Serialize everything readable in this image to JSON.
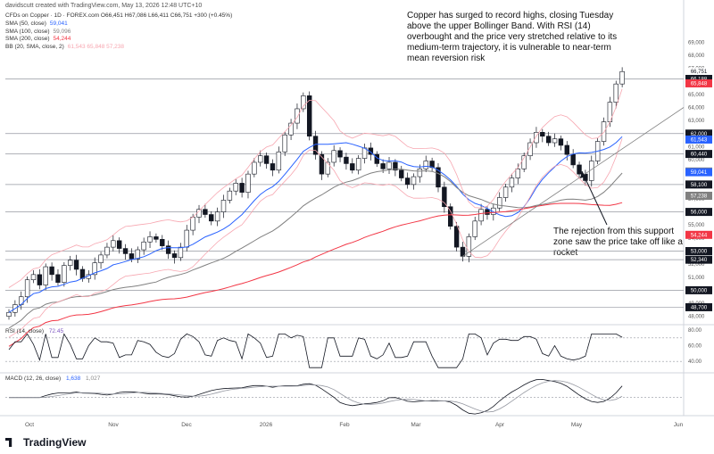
{
  "attribution": "davidscutt created with TradingView.com, May 13, 2026 12:48 UTC+10",
  "symbol_line": "CFDs on Copper · 1D · FOREX.com  O66,451 H67,086 L66,411 C66,751 +300 (+0.45%)",
  "indicators": [
    {
      "label": "SMA (50, close)",
      "value": "59,041",
      "color": "#2962ff"
    },
    {
      "label": "SMA (100, close)",
      "value": "59,096",
      "color": "#808080"
    },
    {
      "label": "SMA (200, close)",
      "value": "54,244",
      "color": "#f23645"
    },
    {
      "label": "BB (20, SMA, close, 2)",
      "value": "61,543  65,848  57,238",
      "color": "#f7a6b0"
    }
  ],
  "annotation_top": "Copper has surged to record highs, closing Tuesday above the upper Bollinger Band. With RSI (14) overbought and the price very stretched relative to its medium-term trajectory, it is vulnerable to near-term mean reversion risk",
  "annotation_bottom": "The rejection from this support zone saw the price take off like a rocket",
  "rsi_label": "RSI (14, close)",
  "rsi_value": "72.45",
  "macd_label": "MACD (12, 26, close)",
  "macd_value": "1,638",
  "macd_value2": "1,027",
  "logo_text": "TradingView",
  "chart_data": {
    "type": "candlestick",
    "x_ticks": [
      "Oct",
      "Nov",
      "Dec",
      "2026",
      "Feb",
      "Mar",
      "Apr",
      "May",
      "Jun"
    ],
    "price_axis": [
      "69,000",
      "68,000",
      "67,000",
      "66,000",
      "65,000",
      "64,000",
      "63,000",
      "62,000",
      "61,000",
      "60,000",
      "59,000",
      "58,000",
      "57,000",
      "56,000",
      "55,000",
      "54,000",
      "53,000",
      "52,000",
      "51,000",
      "50,000",
      "49,000",
      "48,000"
    ],
    "ylim": [
      47500,
      69500
    ],
    "horizontal_levels": [
      66188,
      62000,
      60440,
      58100,
      56000,
      53000,
      52340,
      50000,
      48700
    ],
    "price_tags": [
      {
        "text": "66,751",
        "color": "#ffffff"
      },
      {
        "text": "66,188",
        "color": "#131722"
      },
      {
        "text": "65,848",
        "color": "#f23645"
      },
      {
        "text": "62,000",
        "color": "#131722"
      },
      {
        "text": "61,543",
        "color": "#2962ff"
      },
      {
        "text": "60,440",
        "color": "#131722"
      },
      {
        "text": "59,096",
        "color": "#808080"
      },
      {
        "text": "59,041",
        "color": "#2962ff"
      },
      {
        "text": "58,100",
        "color": "#131722"
      },
      {
        "text": "57,238",
        "color": "#808080"
      },
      {
        "text": "56,000",
        "color": "#131722"
      },
      {
        "text": "54,244",
        "color": "#f23645"
      },
      {
        "text": "53,000",
        "color": "#131722"
      },
      {
        "text": "52,340",
        "color": "#131722"
      },
      {
        "text": "50,000",
        "color": "#131722"
      },
      {
        "text": "48,700",
        "color": "#131722"
      }
    ],
    "close_path": [
      48300,
      48900,
      49500,
      50800,
      51200,
      50400,
      51800,
      51200,
      50600,
      51900,
      52300,
      51600,
      50900,
      51200,
      52100,
      52700,
      53300,
      53800,
      53200,
      52800,
      52400,
      53100,
      53700,
      54100,
      53900,
      53400,
      52800,
      52500,
      53300,
      54600,
      55600,
      56200,
      55800,
      55300,
      56000,
      56900,
      57600,
      58200,
      57500,
      58900,
      59800,
      60300,
      59700,
      59200,
      60600,
      61900,
      62800,
      63900,
      64900,
      61800,
      60400,
      58900,
      59800,
      60700,
      60200,
      59700,
      59200,
      60100,
      60900,
      60400,
      59700,
      59300,
      59800,
      59200,
      58600,
      58100,
      58700,
      59300,
      59900,
      59400,
      57900,
      56400,
      54900,
      53300,
      52600,
      54100,
      55300,
      56200,
      55800,
      56300,
      57100,
      57900,
      58600,
      59300,
      60300,
      61300,
      62100,
      61800,
      61300,
      61600,
      61100,
      60400,
      59600,
      58900,
      58400,
      59900,
      61400,
      62900,
      64400,
      65800,
      66751
    ],
    "rsi_range": [
      30,
      80
    ],
    "rsi_levels": [
      70,
      40
    ],
    "macd_range": [
      -1.5,
      2.0
    ]
  }
}
